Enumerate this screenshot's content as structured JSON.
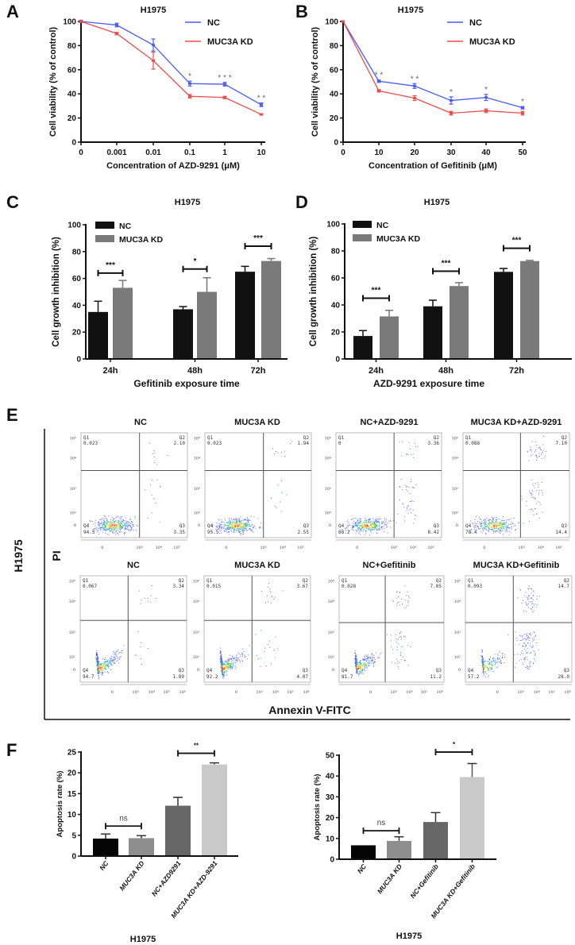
{
  "panel_labels": [
    "A",
    "B",
    "C",
    "D",
    "E",
    "F"
  ],
  "chart_data": {
    "A": {
      "type": "line",
      "title": "H1975",
      "xlabel": "Concentration of AZD-9291 (μM)",
      "ylabel": "Cell viability (% of control)",
      "x": [
        "0",
        "0.001",
        "0.01",
        "0.1",
        "1",
        "10"
      ],
      "ylim": [
        0,
        100
      ],
      "yticks": [
        "0",
        "20",
        "40",
        "60",
        "80",
        "100"
      ],
      "series": [
        {
          "name": "NC",
          "color": "#4b5cf5",
          "values": [
            100,
            97,
            80.5,
            48.5,
            48,
            31
          ],
          "errors": [
            1,
            1.5,
            5,
            2,
            1.5,
            1.5
          ]
        },
        {
          "name": "MUC3A KD",
          "color": "#ef4b4b",
          "values": [
            100,
            90,
            67.5,
            38,
            37,
            23
          ],
          "errors": [
            0.5,
            1,
            7,
            1.5,
            1,
            0.5
          ]
        }
      ],
      "significance": [
        "",
        "",
        "",
        "*",
        "* * *",
        "* *"
      ]
    },
    "B": {
      "type": "line",
      "title": "H1975",
      "xlabel": "Concentration of Gefitinib (μM)",
      "ylabel": "Cell viability (% of control)",
      "x": [
        "0",
        "10",
        "20",
        "30",
        "40",
        "50"
      ],
      "ylim": [
        0,
        100
      ],
      "yticks": [
        "0",
        "20",
        "40",
        "60",
        "80",
        "100"
      ],
      "series": [
        {
          "name": "NC",
          "color": "#4b5cf5",
          "values": [
            100,
            50.5,
            46.5,
            34.5,
            37,
            28.5
          ],
          "errors": [
            0,
            1,
            2,
            3,
            2.5,
            1
          ]
        },
        {
          "name": "MUC3A KD",
          "color": "#ef4b4b",
          "values": [
            100,
            42.5,
            36.5,
            24,
            26,
            24
          ],
          "errors": [
            0,
            1,
            2,
            1.5,
            1.5,
            1.5
          ]
        }
      ],
      "significance": [
        "",
        "* *",
        "* *",
        "*",
        "*",
        "*"
      ]
    },
    "C": {
      "type": "bar",
      "title": "H1975",
      "xlabel": "Gefitinib exposure time",
      "ylabel": "Cell growth inhibition (%)",
      "categories": [
        "24h",
        "48h",
        "72h"
      ],
      "ylim": [
        0,
        100
      ],
      "yticks": [
        "0",
        "20",
        "40",
        "60",
        "80",
        "100"
      ],
      "series": [
        {
          "name": "NC",
          "color": "#111111",
          "values": [
            35,
            37,
            65
          ],
          "errors": [
            8,
            2,
            4
          ]
        },
        {
          "name": "MUC3A KD",
          "color": "#7a7a7a",
          "values": [
            53,
            50,
            73
          ],
          "errors": [
            5.5,
            10.5,
            1.8
          ]
        }
      ],
      "brackets": [
        {
          "level": 64,
          "label": "***"
        },
        {
          "level": 67,
          "label": "*"
        },
        {
          "level": 84,
          "label": "***"
        }
      ]
    },
    "D": {
      "type": "bar",
      "title": "H1975",
      "xlabel": "AZD-9291 exposure time",
      "ylabel": "Cell growth inhibition (%)",
      "categories": [
        "24h",
        "48h",
        "72h"
      ],
      "ylim": [
        0,
        100
      ],
      "yticks": [
        "0",
        "20",
        "40",
        "60",
        "80",
        "100"
      ],
      "series": [
        {
          "name": "NC",
          "color": "#111111",
          "values": [
            17,
            39,
            64.5
          ],
          "errors": [
            4,
            4.5,
            2.5
          ]
        },
        {
          "name": "MUC3A KD",
          "color": "#7a7a7a",
          "values": [
            31.5,
            54,
            72.5
          ],
          "errors": [
            4.5,
            2.5,
            0.5
          ]
        }
      ],
      "brackets": [
        {
          "level": 45,
          "label": "***"
        },
        {
          "level": 65,
          "label": "***"
        },
        {
          "level": 82,
          "label": "***"
        }
      ]
    },
    "E": {
      "type": "scatter",
      "xlabel": "Annexin V-FITC",
      "ylabel": "PI",
      "row_label": "H1975",
      "quadrant_names": [
        "Q1",
        "Q2",
        "Q3",
        "Q4"
      ],
      "yticks": [
        "0",
        "10²",
        "10³",
        "10⁴",
        "10⁵"
      ],
      "xticks_row1": [
        "0",
        "10³",
        "10⁴",
        "10⁵"
      ],
      "xticks_row2": [
        "0",
        "10³",
        "10⁴",
        "10⁵",
        "10⁶"
      ],
      "plots": [
        {
          "title": "NC",
          "Q1": "0.023",
          "Q2": "2.10",
          "Q3": "3.35",
          "Q4": "94.5"
        },
        {
          "title": "MUC3A KD",
          "Q1": "0.023",
          "Q2": "1.94",
          "Q3": "2.55",
          "Q4": "95.5"
        },
        {
          "title": "NC+AZD-9291",
          "Q1": "0",
          "Q2": "3.36",
          "Q3": "8.42",
          "Q4": "88.2"
        },
        {
          "title": "MUC3A KD+AZD-9291",
          "Q1": "0.088",
          "Q2": "7.10",
          "Q3": "14.4",
          "Q4": "78.4"
        },
        {
          "title": "NC",
          "Q1": "0.067",
          "Q2": "3.34",
          "Q3": "1.89",
          "Q4": "94.7"
        },
        {
          "title": "MUC3A KD",
          "Q1": "0.015",
          "Q2": "3.67",
          "Q3": "4.07",
          "Q4": "92.2"
        },
        {
          "title": "NC+Gefitinib",
          "Q1": "0.028",
          "Q2": "7.05",
          "Q3": "11.2",
          "Q4": "81.7"
        },
        {
          "title": "MUC3A KD+Gefitinib",
          "Q1": "0.093",
          "Q2": "14.7",
          "Q3": "28.0",
          "Q4": "57.2"
        }
      ]
    },
    "F1": {
      "type": "bar",
      "title": "H1975",
      "ylabel": "Apoptosis rate (%)",
      "categories": [
        "NC",
        "MUC3A KD",
        "NC+AZD9291",
        "MUC3A KD+AZD-9291"
      ],
      "values": [
        4.2,
        4.3,
        12.1,
        22
      ],
      "errors": [
        1.1,
        0.6,
        2,
        0.4
      ],
      "colors": [
        "#050505",
        "#8e8e8e",
        "#666666",
        "#c9c9c9"
      ],
      "ylim": [
        0,
        25
      ],
      "yticks": [
        "0",
        "5",
        "10",
        "15",
        "20",
        "25"
      ],
      "brackets": [
        {
          "from": 0,
          "to": 1,
          "level": 7.2,
          "label": "ns"
        },
        {
          "from": 2,
          "to": 3,
          "level": 24.7,
          "label": "**"
        }
      ]
    },
    "F2": {
      "type": "bar",
      "title": "H1975",
      "ylabel": "Apoptosis rate (%)",
      "categories": [
        "NC",
        "MUC3A KD",
        "NC+Gefitinib",
        "MUC3A KD+Gefitinib"
      ],
      "values": [
        6.7,
        8.8,
        17.9,
        39.5
      ],
      "errors": [
        0,
        2,
        4.5,
        6.5
      ],
      "colors": [
        "#050505",
        "#8e8e8e",
        "#666666",
        "#c9c9c9"
      ],
      "ylim": [
        0,
        50
      ],
      "yticks": [
        "0",
        "10",
        "20",
        "30",
        "40",
        "50"
      ],
      "brackets": [
        {
          "from": 0,
          "to": 1,
          "level": 13.7,
          "label": "ns"
        },
        {
          "from": 2,
          "to": 3,
          "level": 51.5,
          "label": "*"
        }
      ]
    }
  }
}
